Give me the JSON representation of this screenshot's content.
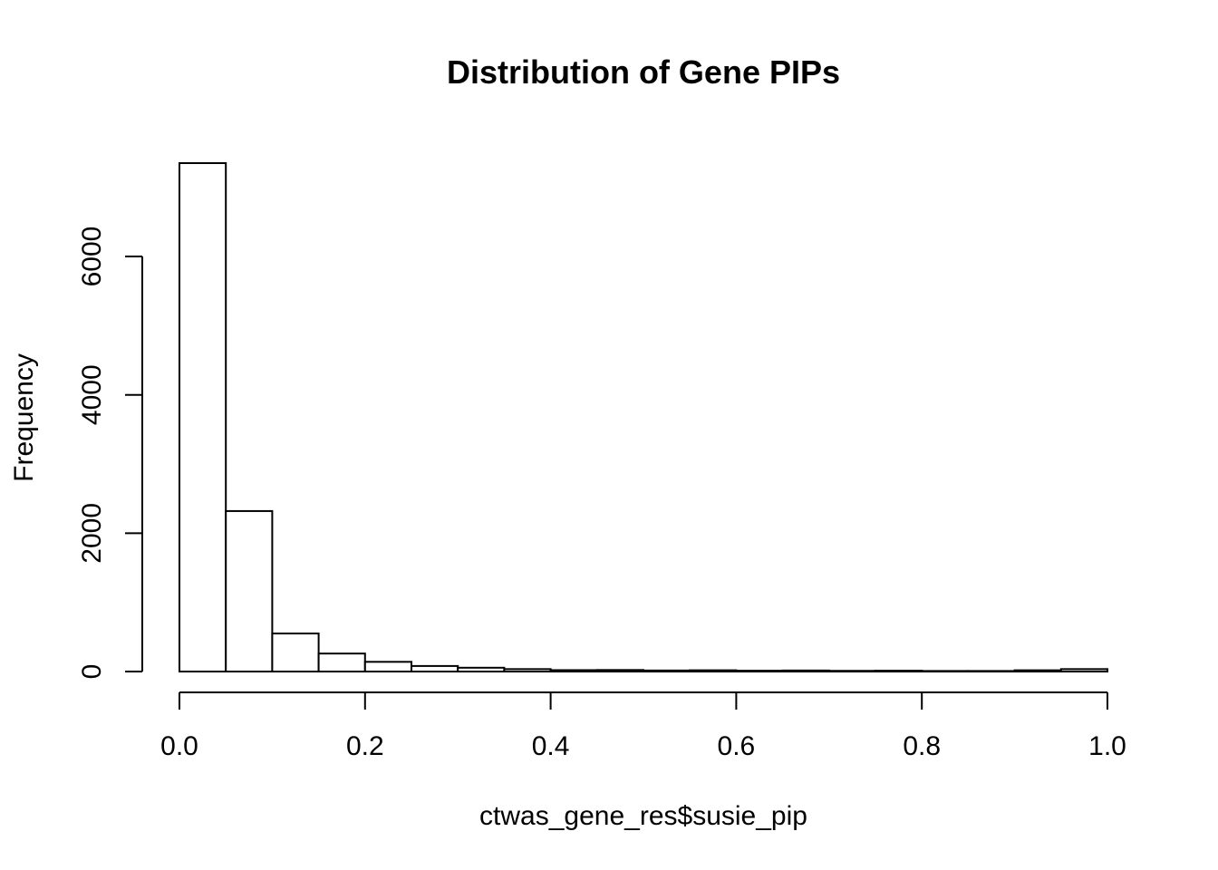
{
  "chart_data": {
    "type": "bar",
    "title": "Distribution of Gene PIPs",
    "xlabel": "ctwas_gene_res$susie_pip",
    "ylabel": "Frequency",
    "bin_edges": [
      0.0,
      0.05,
      0.1,
      0.15,
      0.2,
      0.25,
      0.3,
      0.35,
      0.4,
      0.45,
      0.5,
      0.55,
      0.6,
      0.65,
      0.7,
      0.75,
      0.8,
      0.85,
      0.9,
      0.95,
      1.0
    ],
    "values": [
      7350,
      2320,
      550,
      260,
      140,
      80,
      55,
      35,
      20,
      22,
      15,
      18,
      12,
      15,
      10,
      12,
      8,
      8,
      18,
      35
    ],
    "xlim": [
      0,
      1
    ],
    "ylim": [
      0,
      7350
    ],
    "xticks": [
      0.0,
      0.2,
      0.4,
      0.6,
      0.8,
      1.0
    ],
    "xtick_labels": [
      "0.0",
      "0.2",
      "0.4",
      "0.6",
      "0.8",
      "1.0"
    ],
    "yticks": [
      0,
      2000,
      4000,
      6000
    ],
    "ytick_labels": [
      "0",
      "2000",
      "4000",
      "6000"
    ],
    "grid": false,
    "bar_fill": "#ffffff",
    "bar_stroke": "#000000"
  }
}
